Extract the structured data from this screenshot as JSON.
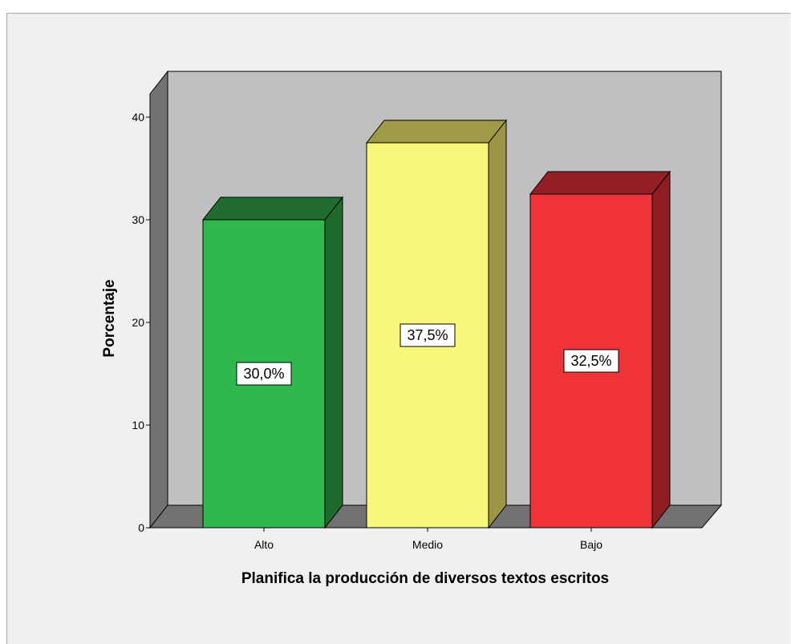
{
  "chart_data": {
    "type": "bar",
    "style": "3d",
    "title": "",
    "xlabel": "Planifica la producción de diversos textos escritos",
    "ylabel": "Porcentaje",
    "categories": [
      "Alto",
      "Medio",
      "Bajo"
    ],
    "values": [
      30.0,
      37.5,
      32.5
    ],
    "data_labels": [
      "30,0%",
      "37,5%",
      "32,5%"
    ],
    "yticks": [
      "0",
      "10",
      "20",
      "30",
      "40"
    ],
    "ylim": [
      0,
      42
    ],
    "grid": false,
    "legend": "none",
    "colors": {
      "bars": [
        "#2fb84b",
        "#f9f77a",
        "#ef3338"
      ],
      "bar_tops": [
        "#216d30",
        "#9f9a46",
        "#941f24"
      ],
      "bar_sides": [
        "#1f6a2c",
        "#9b9545",
        "#8f1c20"
      ],
      "back_wall": "#c0c0c0",
      "side_wall": "#727272",
      "floor": "#727272",
      "background": "#f0f0f0"
    }
  }
}
